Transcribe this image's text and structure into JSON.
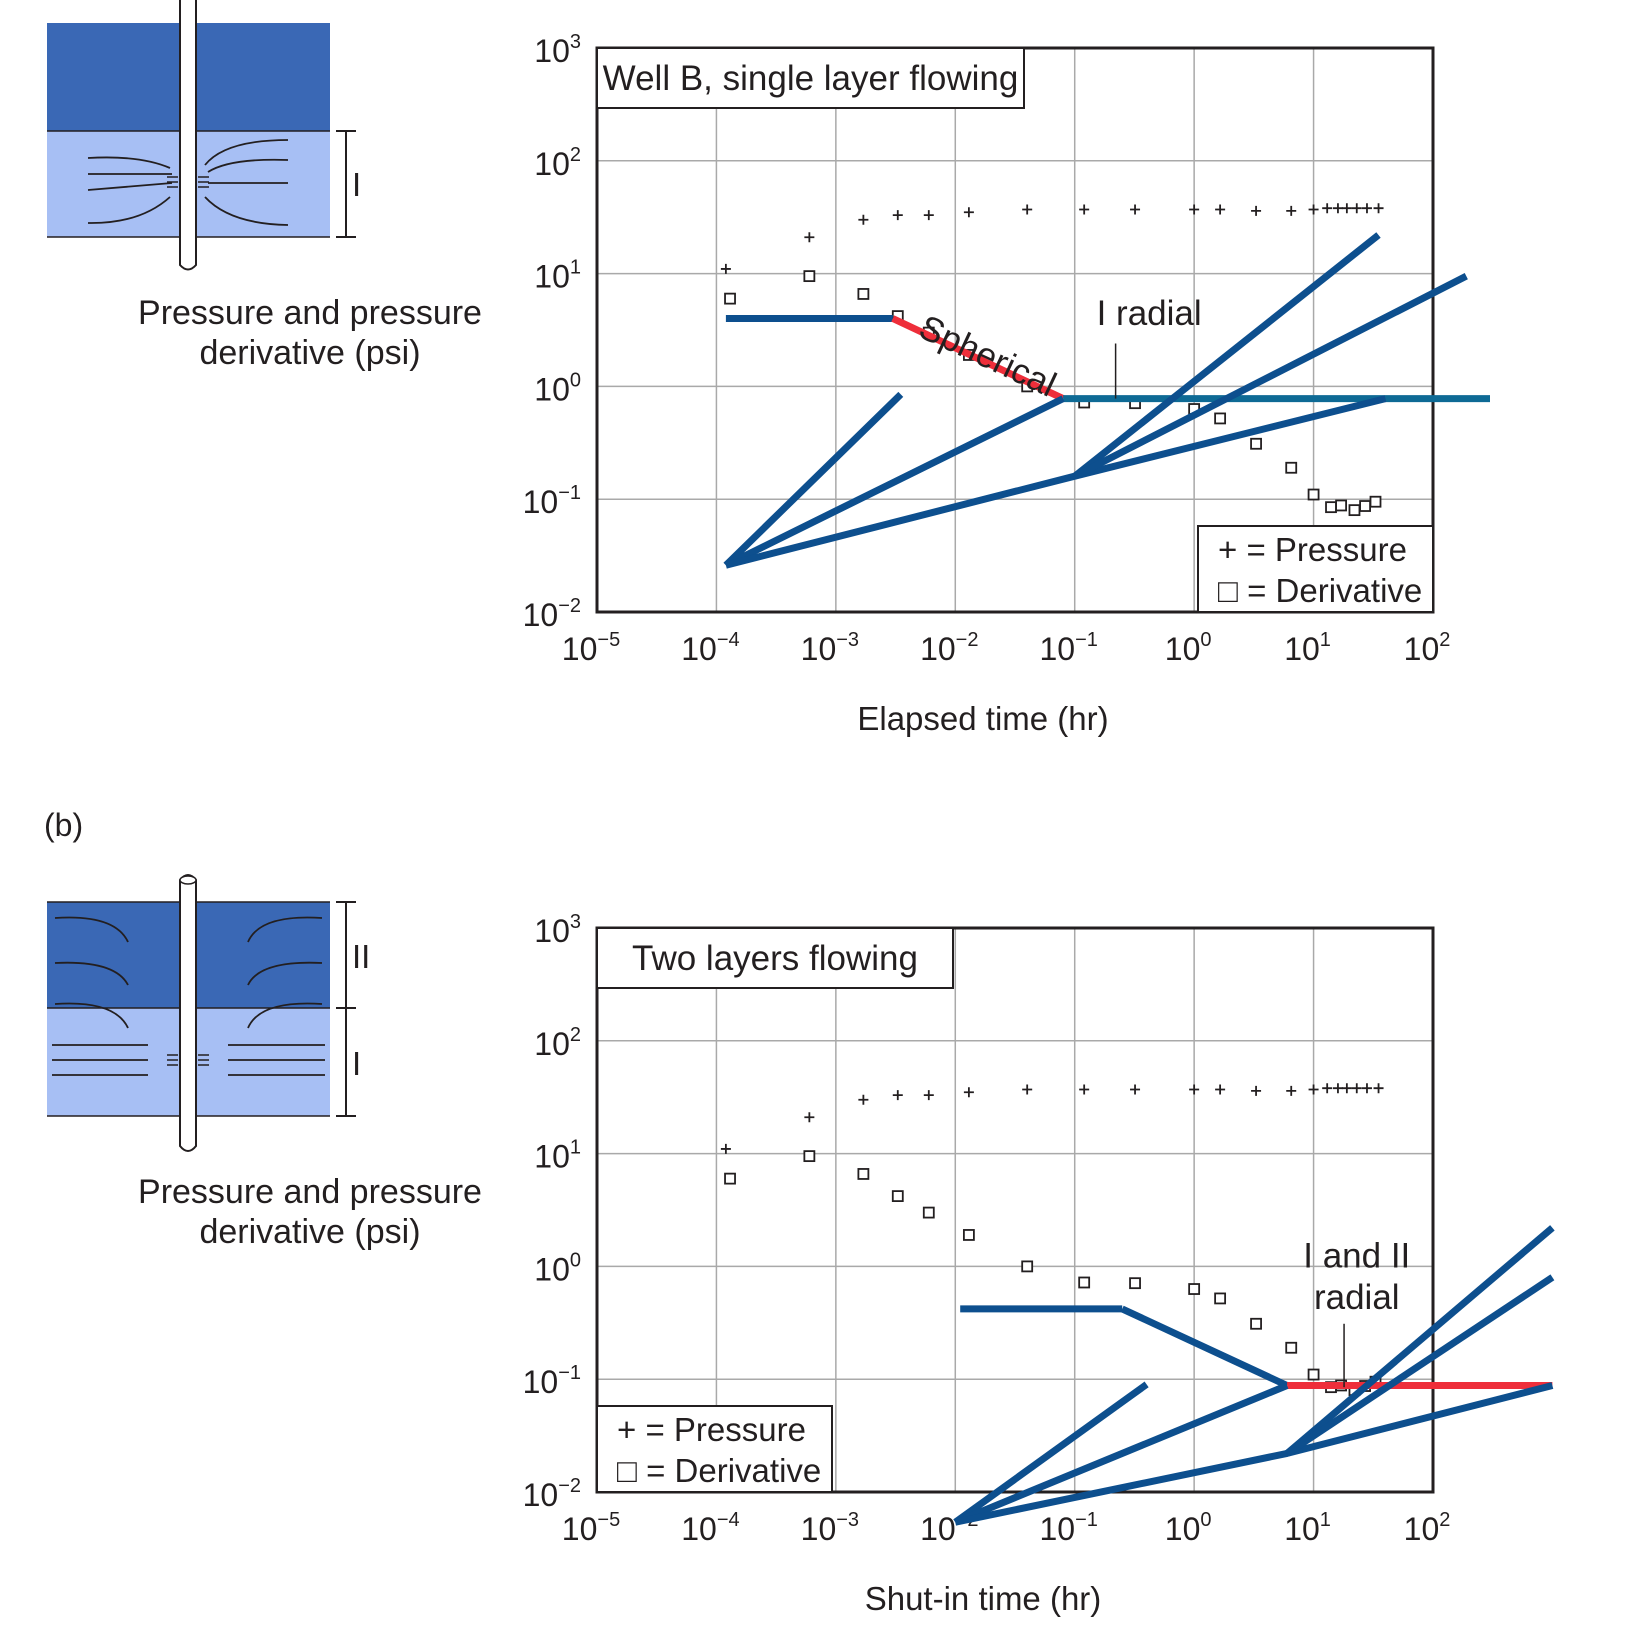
{
  "panel_b_label": "(b)",
  "colors": {
    "upper_layer": "#3a68b5",
    "lower_layer": "#a7bff4",
    "model_line": "#0d4f8e",
    "horizontal_line": "#0e6a95",
    "highlight_line": "#ee2e3a",
    "grid": "#a9a9a9",
    "axis": "#231f20"
  },
  "schematics": [
    {
      "id": "a",
      "layer_labels": [
        "I"
      ],
      "caption_line1": "Pressure and pressure",
      "caption_line2": "derivative (psi)"
    },
    {
      "id": "b",
      "layer_labels": [
        "II",
        "I"
      ],
      "caption_line1": "Pressure and pressure",
      "caption_line2": "derivative (psi)"
    }
  ],
  "chart_data": [
    {
      "type": "scatter",
      "scale": "log-log",
      "title": "Well B, single layer flowing",
      "xlabel": "Elapsed time (hr)",
      "ylabel": "Pressure and pressure derivative (psi)",
      "xlim": [
        1e-05,
        100
      ],
      "ylim": [
        0.01,
        1000
      ],
      "x_ticks": [
        {
          "base": "10",
          "exp": "−5",
          "value": 1e-05
        },
        {
          "base": "10",
          "exp": "−4",
          "value": 0.0001
        },
        {
          "base": "10",
          "exp": "−3",
          "value": 0.001
        },
        {
          "base": "10",
          "exp": "−2",
          "value": 0.01
        },
        {
          "base": "10",
          "exp": "−1",
          "value": 0.1
        },
        {
          "base": "10",
          "exp": "0",
          "value": 1
        },
        {
          "base": "10",
          "exp": "1",
          "value": 10
        },
        {
          "base": "10",
          "exp": "2",
          "value": 100
        }
      ],
      "y_ticks": [
        {
          "base": "10",
          "exp": "−2",
          "value": 0.01
        },
        {
          "base": "10",
          "exp": "−1",
          "value": 0.1
        },
        {
          "base": "10",
          "exp": "0",
          "value": 1
        },
        {
          "base": "10",
          "exp": "1",
          "value": 10
        },
        {
          "base": "10",
          "exp": "2",
          "value": 100
        },
        {
          "base": "10",
          "exp": "3",
          "value": 1000
        }
      ],
      "grid": true,
      "legend": {
        "position": "bottom-right",
        "pressure": "+ = Pressure",
        "derivative": "□ = Derivative"
      },
      "series": [
        {
          "name": "Pressure",
          "marker": "+",
          "x": [
            0.00012,
            0.0006,
            0.0017,
            0.0033,
            0.006,
            0.013,
            0.04,
            0.12,
            0.32,
            1.0,
            1.65,
            3.3,
            6.5,
            10,
            13,
            16,
            19,
            23,
            28,
            35
          ],
          "y": [
            11,
            21,
            30,
            33,
            33,
            35,
            37,
            37,
            37,
            37,
            37,
            36,
            36,
            37,
            38,
            38,
            38,
            38,
            38,
            38
          ]
        },
        {
          "name": "Derivative",
          "marker": "square",
          "x": [
            0.00013,
            0.0006,
            0.0017,
            0.0033,
            0.006,
            0.013,
            0.04,
            0.12,
            0.32,
            1.0,
            1.65,
            3.3,
            6.5,
            10,
            14,
            17,
            22,
            27,
            33
          ],
          "y": [
            6.0,
            9.5,
            6.6,
            4.2,
            3.0,
            1.9,
            1.0,
            0.72,
            0.71,
            0.63,
            0.52,
            0.31,
            0.19,
            0.11,
            0.085,
            0.088,
            0.08,
            0.087,
            0.095
          ]
        }
      ],
      "model_lines": [
        {
          "name": "early flat",
          "color": "model_line",
          "points": [
            [
              0.00012,
              4.0
            ],
            [
              0.003,
              4.0
            ]
          ]
        },
        {
          "name": "spherical",
          "color": "highlight_line",
          "points": [
            [
              0.003,
              4.0
            ],
            [
              0.08,
              0.78
            ]
          ]
        },
        {
          "name": "I radial",
          "color": "horizontal_line",
          "points": [
            [
              0.08,
              0.78
            ],
            [
              300,
              0.78
            ]
          ]
        },
        {
          "name": "fan 1",
          "color": "model_line",
          "points": [
            [
              0.00012,
              0.026
            ],
            [
              0.0035,
              0.85
            ]
          ]
        },
        {
          "name": "fan 2",
          "color": "model_line",
          "points": [
            [
              0.00012,
              0.026
            ],
            [
              0.08,
              0.78
            ]
          ]
        },
        {
          "name": "fan 3",
          "color": "model_line",
          "points": [
            [
              0.00012,
              0.026
            ],
            [
              0.1,
              0.16
            ],
            [
              40,
              0.78
            ]
          ]
        },
        {
          "name": "fan 4",
          "color": "model_line",
          "points": [
            [
              0.1,
              0.16
            ],
            [
              35,
              22
            ]
          ]
        },
        {
          "name": "fan 5",
          "color": "model_line",
          "points": [
            [
              0.1,
              0.16
            ],
            [
              190,
              9.5
            ]
          ]
        }
      ],
      "annotations": [
        {
          "text": "Spherical",
          "x": 0.017,
          "y": 1.5,
          "rotate": 25
        },
        {
          "text": "I radial",
          "x": 0.42,
          "y": 3.5,
          "leader": [
            [
              0.22,
              2.4
            ],
            [
              0.22,
              0.78
            ]
          ]
        }
      ]
    },
    {
      "type": "scatter",
      "scale": "log-log",
      "title": "Two layers flowing",
      "xlabel": "Shut-in time (hr)",
      "ylabel": "Pressure and pressure derivative (psi)",
      "xlim": [
        1e-05,
        100
      ],
      "ylim": [
        0.01,
        1000
      ],
      "x_ticks": [
        {
          "base": "10",
          "exp": "−5",
          "value": 1e-05
        },
        {
          "base": "10",
          "exp": "−4",
          "value": 0.0001
        },
        {
          "base": "10",
          "exp": "−3",
          "value": 0.001
        },
        {
          "base": "10",
          "exp": "−2",
          "value": 0.01
        },
        {
          "base": "10",
          "exp": "−1",
          "value": 0.1
        },
        {
          "base": "10",
          "exp": "0",
          "value": 1
        },
        {
          "base": "10",
          "exp": "1",
          "value": 10
        },
        {
          "base": "10",
          "exp": "2",
          "value": 100
        }
      ],
      "y_ticks": [
        {
          "base": "10",
          "exp": "−2",
          "value": 0.01
        },
        {
          "base": "10",
          "exp": "−1",
          "value": 0.1
        },
        {
          "base": "10",
          "exp": "0",
          "value": 1
        },
        {
          "base": "10",
          "exp": "1",
          "value": 10
        },
        {
          "base": "10",
          "exp": "2",
          "value": 100
        },
        {
          "base": "10",
          "exp": "3",
          "value": 1000
        }
      ],
      "grid": true,
      "legend": {
        "position": "bottom-left",
        "pressure": "+ = Pressure",
        "derivative": "□ = Derivative"
      },
      "series": [
        {
          "name": "Pressure",
          "marker": "+",
          "x": [
            0.00012,
            0.0006,
            0.0017,
            0.0033,
            0.006,
            0.013,
            0.04,
            0.12,
            0.32,
            1.0,
            1.65,
            3.3,
            6.5,
            10,
            13,
            16,
            19,
            23,
            28,
            35
          ],
          "y": [
            11,
            21,
            30,
            33,
            33,
            35,
            37,
            37,
            37,
            37,
            37,
            36,
            36,
            37,
            38,
            38,
            38,
            38,
            38,
            38
          ]
        },
        {
          "name": "Derivative",
          "marker": "square",
          "x": [
            0.00013,
            0.0006,
            0.0017,
            0.0033,
            0.006,
            0.013,
            0.04,
            0.12,
            0.32,
            1.0,
            1.65,
            3.3,
            6.5,
            10,
            14,
            17,
            22,
            27,
            33
          ],
          "y": [
            6.0,
            9.5,
            6.6,
            4.2,
            3.0,
            1.9,
            1.0,
            0.72,
            0.71,
            0.63,
            0.52,
            0.31,
            0.19,
            0.11,
            0.085,
            0.088,
            0.08,
            0.087,
            0.095
          ]
        }
      ],
      "model_lines": [
        {
          "name": "flat",
          "color": "model_line",
          "points": [
            [
              0.011,
              0.42
            ],
            [
              0.25,
              0.42
            ]
          ]
        },
        {
          "name": "decline",
          "color": "model_line",
          "points": [
            [
              0.25,
              0.42
            ],
            [
              6,
              0.088
            ]
          ]
        },
        {
          "name": "I and II radial",
          "color": "highlight_line",
          "points": [
            [
              6,
              0.088
            ],
            [
              1000,
              0.088
            ]
          ]
        },
        {
          "name": "fan 1",
          "color": "model_line",
          "points": [
            [
              0.01,
              0.0054
            ],
            [
              0.4,
              0.09
            ]
          ]
        },
        {
          "name": "fan 2",
          "color": "model_line",
          "points": [
            [
              0.01,
              0.0054
            ],
            [
              6,
              0.088
            ]
          ]
        },
        {
          "name": "fan 3",
          "color": "model_line",
          "points": [
            [
              0.01,
              0.0054
            ],
            [
              6,
              0.022
            ],
            [
              1000,
              0.088
            ]
          ]
        },
        {
          "name": "fan 4",
          "color": "model_line",
          "points": [
            [
              6,
              0.022
            ],
            [
              1000,
              2.2
            ]
          ]
        },
        {
          "name": "fan 5",
          "color": "model_line",
          "points": [
            [
              6,
              0.022
            ],
            [
              1000,
              0.8
            ]
          ]
        }
      ],
      "annotations": [
        {
          "text": "I and II",
          "x": 23,
          "y": 0.98
        },
        {
          "text": "radial",
          "x": 23,
          "y": 0.42,
          "leader": [
            [
              18,
              0.31
            ],
            [
              18,
              0.085
            ]
          ]
        }
      ]
    }
  ]
}
